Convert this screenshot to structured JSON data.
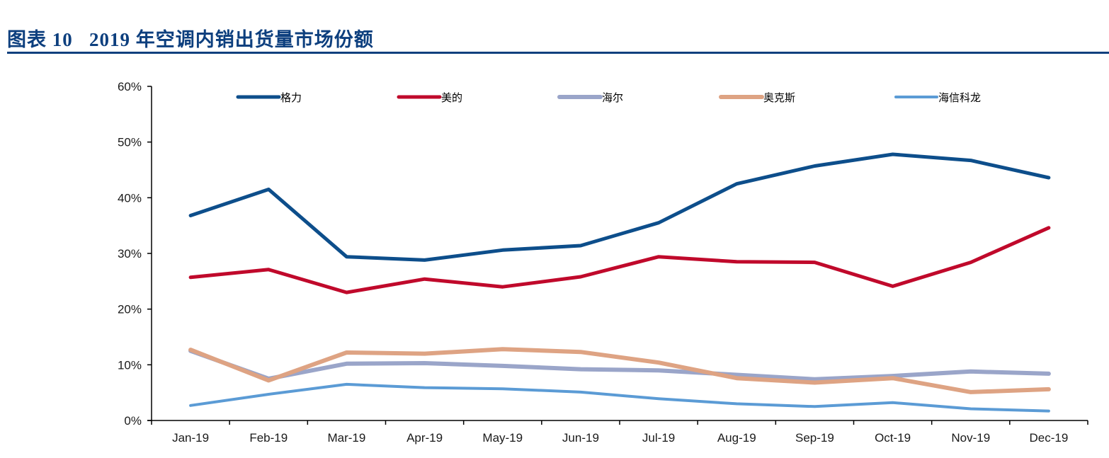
{
  "title": {
    "figure_label": "图表 10",
    "text": "2019 年空调内销出货量市场份额",
    "color": "#0d3f7e"
  },
  "chart_data": {
    "type": "line",
    "title": "2019 年空调内销出货量市场份额",
    "xlabel": "",
    "ylabel": "",
    "categories": [
      "Jan-19",
      "Feb-19",
      "Mar-19",
      "Apr-19",
      "May-19",
      "Jun-19",
      "Jul-19",
      "Aug-19",
      "Sep-19",
      "Oct-19",
      "Nov-19",
      "Dec-19"
    ],
    "y_ticks": [
      "0%",
      "10%",
      "20%",
      "30%",
      "40%",
      "50%",
      "60%"
    ],
    "ylim": [
      0,
      60
    ],
    "y_unit": "%",
    "grid": false,
    "legend_position": "top-inside",
    "series": [
      {
        "name": "格力",
        "color": "#0d4e8b",
        "width": 5,
        "values": [
          36.8,
          41.5,
          29.4,
          28.8,
          30.6,
          31.4,
          35.5,
          42.5,
          45.7,
          47.8,
          46.7,
          43.6
        ]
      },
      {
        "name": "美的",
        "color": "#c0092b",
        "width": 5,
        "values": [
          25.7,
          27.1,
          23.0,
          25.4,
          24.0,
          25.8,
          29.4,
          28.5,
          28.4,
          24.1,
          28.4,
          34.6
        ]
      },
      {
        "name": "海尔",
        "color": "#9aa5c9",
        "width": 6,
        "values": [
          12.5,
          7.5,
          10.2,
          10.3,
          9.8,
          9.2,
          9.0,
          8.2,
          7.4,
          8.0,
          8.8,
          8.4
        ]
      },
      {
        "name": "奥克斯",
        "color": "#dea383",
        "width": 6,
        "values": [
          12.7,
          7.2,
          12.2,
          12.0,
          12.8,
          12.3,
          10.4,
          7.6,
          6.8,
          7.6,
          5.1,
          5.6
        ]
      },
      {
        "name": "海信科龙",
        "color": "#5b9bd5",
        "width": 4,
        "values": [
          2.7,
          4.7,
          6.5,
          5.9,
          5.7,
          5.1,
          3.9,
          3.0,
          2.5,
          3.2,
          2.1,
          1.7
        ]
      }
    ]
  }
}
